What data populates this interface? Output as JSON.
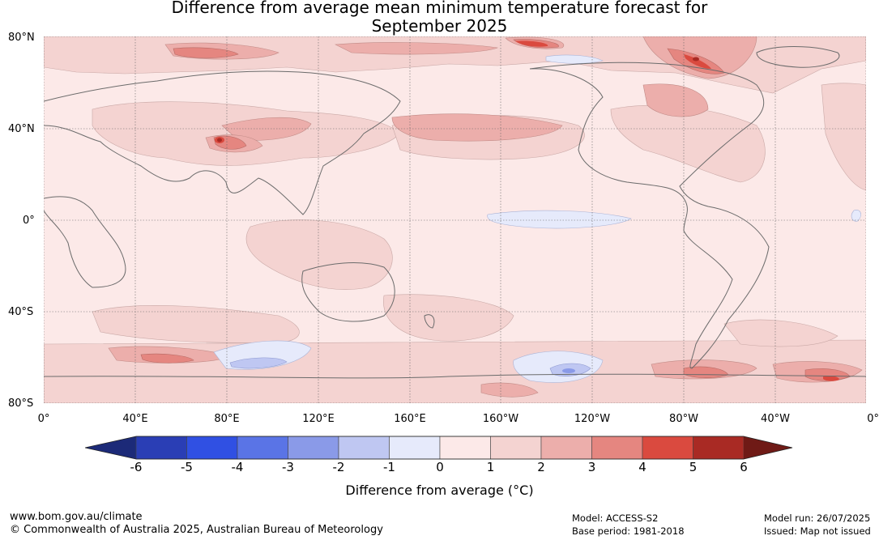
{
  "title": {
    "line1": "Difference from average mean minimum temperature forecast for",
    "line2": "September 2025"
  },
  "map": {
    "projection": "equirectangular, centred 180°",
    "lat_labels": [
      "80°N",
      "40°N",
      "0°",
      "40°S",
      "80°S"
    ],
    "lon_labels": [
      "0°",
      "40°E",
      "80°E",
      "120°E",
      "160°E",
      "160°W",
      "120°W",
      "80°W",
      "40°W",
      "0°"
    ],
    "gridlines": "dotted every 40°"
  },
  "colorbar": {
    "ticks": [
      "-6",
      "-5",
      "-4",
      "-3",
      "-2",
      "-1",
      "0",
      "1",
      "2",
      "3",
      "4",
      "5",
      "6"
    ],
    "label": "Difference from average ($^\\circ$C)",
    "label_text": "Difference from average (°C)",
    "colors": {
      "below_-6": "#1c2a78",
      "-6_-5": "#2a3eb5",
      "-5_-4": "#3050e3",
      "-4_-3": "#5a74e6",
      "-3_-2": "#8a9ae8",
      "-2_-1": "#bfc7f2",
      "-1_0": "#e6eafb",
      "0_1": "#fce9e8",
      "1_2": "#f4d3d1",
      "2_3": "#ecaeab",
      "3_4": "#e58680",
      "4_5": "#da4a3f",
      "5_6": "#a92a24",
      "above_6": "#6f1a16"
    }
  },
  "footer": {
    "url": "www.bom.gov.au/climate",
    "copyright": "© Commonwealth of Australia 2025, Australian Bureau of Meteorology",
    "model": "Model: ACCESS-S2",
    "base_period": "Base period: 1981-2018",
    "model_run": "Model run: 26/07/2025",
    "issued": "Issued: Map not issued"
  }
}
